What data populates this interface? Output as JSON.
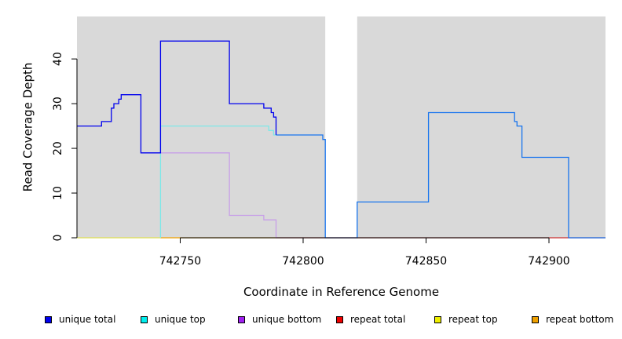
{
  "chart_data": {
    "type": "line",
    "title": "",
    "xlabel": "Coordinate in Reference Genome",
    "ylabel": "Read Coverage Depth",
    "xlim": [
      742708,
      742923
    ],
    "ylim": [
      0,
      49.5
    ],
    "x_ticks": [
      742750,
      742800,
      742850,
      742900
    ],
    "y_ticks": [
      0,
      10,
      20,
      30,
      40
    ],
    "background_color": "#d9d9d9",
    "uncovered_region": [
      742809,
      742822
    ],
    "grid": false,
    "legend_position": "bottom",
    "series": [
      {
        "name": "unique total",
        "color": "#0000ee",
        "segments": [
          {
            "color": "#0000ee",
            "points": [
              [
                742708,
                25
              ],
              [
                742718,
                25
              ],
              [
                742718,
                26
              ],
              [
                742722,
                26
              ],
              [
                742722,
                29
              ],
              [
                742723,
                29
              ],
              [
                742723,
                30
              ],
              [
                742725,
                30
              ],
              [
                742725,
                31
              ],
              [
                742726,
                31
              ],
              [
                742726,
                32
              ],
              [
                742734,
                32
              ],
              [
                742734,
                19
              ],
              [
                742742,
                19
              ],
              [
                742742,
                44
              ],
              [
                742770,
                44
              ],
              [
                742770,
                30
              ],
              [
                742784,
                30
              ],
              [
                742784,
                29
              ],
              [
                742787,
                29
              ],
              [
                742787,
                28
              ],
              [
                742788,
                28
              ],
              [
                742788,
                27
              ],
              [
                742789,
                27
              ],
              [
                742789,
                23
              ]
            ]
          },
          {
            "color": "#1874ee",
            "points": [
              [
                742789,
                23
              ],
              [
                742808,
                23
              ],
              [
                742808,
                22
              ],
              [
                742809,
                22
              ],
              [
                742809,
                0
              ],
              [
                742822,
                0
              ],
              [
                742822,
                8
              ],
              [
                742851,
                8
              ],
              [
                742851,
                28
              ],
              [
                742886,
                28
              ],
              [
                742886,
                26
              ],
              [
                742887,
                26
              ],
              [
                742887,
                25
              ],
              [
                742889,
                25
              ],
              [
                742889,
                18
              ],
              [
                742908,
                18
              ],
              [
                742908,
                0
              ],
              [
                742923,
                0
              ]
            ]
          }
        ]
      },
      {
        "name": "unique top",
        "color": "#00eeee",
        "segments": [
          {
            "color": "#7ee8e8",
            "points": [
              [
                742742,
                0
              ],
              [
                742742,
                25
              ],
              [
                742786,
                25
              ],
              [
                742786,
                24
              ],
              [
                742788,
                24
              ],
              [
                742788,
                23
              ],
              [
                742789,
                23
              ]
            ]
          }
        ]
      },
      {
        "name": "unique bottom",
        "color": "#a020f0",
        "segments": [
          {
            "color": "#c8a0e8",
            "points": [
              [
                742742,
                19
              ],
              [
                742770,
                19
              ],
              [
                742770,
                5
              ],
              [
                742784,
                5
              ],
              [
                742784,
                4
              ],
              [
                742789,
                4
              ],
              [
                742789,
                0
              ]
            ]
          }
        ]
      },
      {
        "name": "repeat total",
        "color": "#ee0000",
        "segments": [
          {
            "color": "#cc3333",
            "points": [
              [
                742789,
                0
              ],
              [
                742923,
                0
              ]
            ]
          }
        ]
      },
      {
        "name": "repeat top",
        "color": "#eeee00",
        "segments": [
          {
            "color": "#dddd55",
            "points": [
              [
                742708,
                0
              ],
              [
                742742,
                0
              ]
            ]
          }
        ]
      },
      {
        "name": "repeat bottom",
        "color": "#eea000",
        "segments": [
          {
            "color": "#eea000",
            "points": [
              [
                742742,
                0
              ],
              [
                742789,
                0
              ]
            ]
          }
        ]
      }
    ]
  }
}
